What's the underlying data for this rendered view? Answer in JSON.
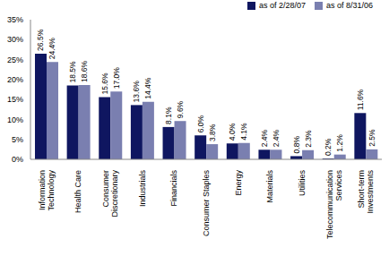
{
  "chart_data": {
    "type": "bar",
    "categories": [
      "Information Technology",
      "Health Care",
      "Consumer Discretionary",
      "Industrials",
      "Financials",
      "Consumer Staples",
      "Energy",
      "Materials",
      "Utilities",
      "Telecommunication Services",
      "Short-term Investments"
    ],
    "series": [
      {
        "name": "as of 2/28/07",
        "color": "#0f1660",
        "values": [
          26.5,
          18.5,
          15.6,
          13.6,
          8.1,
          6.0,
          4.0,
          2.4,
          0.8,
          0.2,
          11.6
        ],
        "value_labels": [
          "26.5%",
          "18.5%",
          "15.6%",
          "13.6%",
          "8.1%",
          "6.0%",
          "4.0%",
          "2.4%",
          "0.8%",
          "0.2%",
          "11.6%"
        ]
      },
      {
        "name": "as of 8/31/06",
        "color": "#7a7fb0",
        "values": [
          24.4,
          18.6,
          17.0,
          14.4,
          9.6,
          3.8,
          4.1,
          2.4,
          2.3,
          1.2,
          2.5
        ],
        "value_labels": [
          "24.4%",
          "18.6%",
          "17.0%",
          "14.4%",
          "9.6%",
          "3.8%",
          "4.1%",
          "2.4%",
          "2.3%",
          "1.2%",
          "2.5%"
        ]
      }
    ],
    "ylim": [
      0,
      35
    ],
    "yticks": [
      {
        "value": 0,
        "label": "0%"
      },
      {
        "value": 5,
        "label": "5%"
      },
      {
        "value": 10,
        "label": "10%"
      },
      {
        "value": 15,
        "label": "15%"
      },
      {
        "value": 20,
        "label": "20%"
      },
      {
        "value": 25,
        "label": "25%"
      },
      {
        "value": 30,
        "label": "30%"
      },
      {
        "value": 35,
        "label": "35%"
      }
    ],
    "grid": false,
    "legend": "upper right",
    "data_labels": true
  }
}
